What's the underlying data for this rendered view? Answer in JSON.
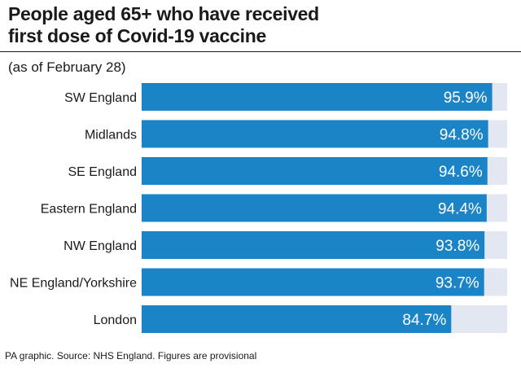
{
  "header": {
    "title_line1": "People aged 65+ who have received",
    "title_line2": "first dose of Covid-19 vaccine",
    "subtitle": "(as of February 28)"
  },
  "footer": {
    "source": "PA graphic. Source: NHS England. Figures are provisional"
  },
  "colors": {
    "bar": "#1a84c7",
    "track": "#e3e7f1",
    "value_text": "#ffffff",
    "label_text": "#1a1a1a"
  },
  "chart_data": {
    "type": "bar",
    "orientation": "horizontal",
    "title": "People aged 65+ who have received first dose of Covid-19 vaccine",
    "subtitle": "(as of February 28)",
    "categories": [
      "SW England",
      "Midlands",
      "SE England",
      "Eastern England",
      "NW England",
      "NE England/Yorkshire",
      "London"
    ],
    "values": [
      95.9,
      94.8,
      94.6,
      94.4,
      93.8,
      93.7,
      84.7
    ],
    "value_labels": [
      "95.9%",
      "94.8%",
      "94.6%",
      "94.4%",
      "93.8%",
      "93.7%",
      "84.7%"
    ],
    "xlim": [
      0,
      100
    ],
    "unit": "%",
    "grid": false,
    "legend": "none"
  }
}
